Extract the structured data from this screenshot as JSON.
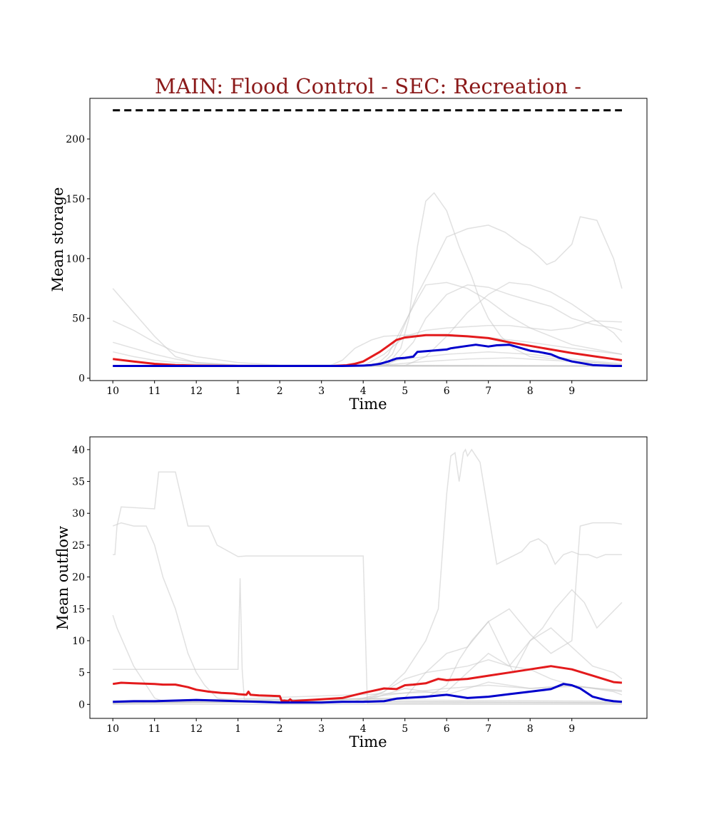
{
  "figure": {
    "title": "MAIN: Flood Control - SEC: Recreation -",
    "title_color": "#8b1a1a"
  },
  "chart_data": [
    {
      "type": "line",
      "xlabel": "Time",
      "ylabel": "Mean storage",
      "x_ticks": [
        "10",
        "11",
        "12",
        "1",
        "2",
        "3",
        "4",
        "5",
        "6",
        "7",
        "8",
        "9"
      ],
      "xlim": [
        -0.55,
        12.8
      ],
      "ylim": [
        -2,
        234
      ],
      "y_ticks": [
        0,
        50,
        100,
        150,
        200
      ],
      "capacity_line": {
        "y": 224,
        "x": [
          0,
          12.2
        ],
        "style": "dashed",
        "color": "#000000"
      },
      "series": [
        {
          "color": "#e31a1c",
          "x": [
            0,
            0.5,
            1,
            1.5,
            2,
            3,
            4,
            5,
            5.3,
            5.6,
            5.8,
            6,
            6.2,
            6.4,
            6.6,
            6.8,
            7,
            7.5,
            8,
            8.5,
            9,
            9.5,
            10,
            10.5,
            11,
            11.5,
            12,
            12.2
          ],
          "y": [
            16,
            14,
            12,
            11,
            10.5,
            10.3,
            10.2,
            10.2,
            10.3,
            10.8,
            12,
            14,
            18,
            22,
            27,
            32,
            34,
            36,
            36,
            35,
            33.5,
            30,
            27,
            24,
            21,
            18.5,
            16,
            15
          ]
        },
        {
          "color": "#0000cc",
          "x": [
            0,
            1,
            2,
            3,
            4,
            5,
            5.5,
            6,
            6.2,
            6.4,
            6.6,
            6.8,
            7,
            7.2,
            7.3,
            8,
            8.1,
            8.5,
            8.7,
            9,
            9.2,
            9.5,
            10,
            10.2,
            10.5,
            10.7,
            11,
            11.5,
            12,
            12.2
          ],
          "y": [
            10.2,
            10.2,
            10.2,
            10.2,
            10.2,
            10.2,
            10.2,
            10.5,
            11,
            12,
            14,
            16.5,
            17,
            18,
            22,
            24,
            25,
            27,
            28,
            26.5,
            27.5,
            28,
            23,
            22,
            20,
            17,
            14,
            11,
            10.2,
            10.2
          ]
        }
      ],
      "background_series": [
        {
          "x": [
            0,
            0.5,
            1,
            1.5,
            2,
            3,
            4,
            5,
            6,
            12.2
          ],
          "y": [
            75,
            55,
            35,
            18,
            13,
            11,
            10.5,
            10.3,
            10.2,
            10.2
          ]
        },
        {
          "x": [
            0,
            0.5,
            1,
            1.5,
            2,
            3,
            4,
            12.2
          ],
          "y": [
            48,
            40,
            30,
            22,
            18,
            13,
            11,
            10.3
          ]
        },
        {
          "x": [
            0,
            0.5,
            1,
            1.5,
            2,
            3,
            12.2
          ],
          "y": [
            30,
            25,
            20,
            16,
            13,
            11,
            10.3
          ]
        },
        {
          "x": [
            0,
            0.5,
            1,
            1.5,
            2,
            3,
            12.2
          ],
          "y": [
            22,
            18,
            15,
            13,
            12,
            10.5,
            10.2
          ]
        },
        {
          "x": [
            0,
            6.3,
            6.6,
            6.9,
            7.1,
            7.3,
            7.5,
            7.7,
            8,
            8.3,
            8.6,
            8.8,
            9,
            9.3,
            9.6,
            10,
            12.2
          ],
          "y": [
            10,
            10.2,
            12,
            25,
            50,
            110,
            148,
            155,
            140,
            110,
            85,
            65,
            50,
            35,
            25,
            18,
            11
          ]
        },
        {
          "x": [
            0,
            6.4,
            6.7,
            7,
            7.3,
            7.6,
            8,
            8.5,
            9,
            9.4,
            9.8,
            10,
            10.2,
            10.4,
            10.6,
            10.8,
            11,
            11.2,
            11.6,
            12,
            12.2
          ],
          "y": [
            10,
            10.2,
            20,
            45,
            70,
            90,
            118,
            125,
            128,
            122,
            112,
            108,
            102,
            95,
            98,
            105,
            112,
            135,
            132,
            100,
            75
          ]
        },
        {
          "x": [
            0,
            6.3,
            6.6,
            6.9,
            7.2,
            7.5,
            8,
            8.5,
            9,
            9.5,
            10,
            10.5,
            11,
            12.2
          ],
          "y": [
            10,
            10.5,
            20,
            40,
            60,
            78,
            80,
            75,
            65,
            52,
            42,
            35,
            28,
            20
          ]
        },
        {
          "x": [
            0,
            6.5,
            6.8,
            7.2,
            7.5,
            8,
            8.5,
            9,
            9.5,
            10,
            10.5,
            11,
            11.5,
            12,
            12.2
          ],
          "y": [
            10,
            10.2,
            15,
            30,
            50,
            70,
            78,
            76,
            70,
            65,
            60,
            50,
            45,
            42,
            40
          ]
        },
        {
          "x": [
            0,
            7,
            7.5,
            8,
            8.5,
            9,
            9.5,
            10,
            10.5,
            11,
            11.5,
            12,
            12.2
          ],
          "y": [
            10,
            10.5,
            18,
            35,
            55,
            70,
            80,
            78,
            72,
            62,
            50,
            38,
            30
          ]
        },
        {
          "x": [
            0,
            6,
            6.5,
            7,
            7.5,
            8,
            9,
            9.5,
            10,
            10.5,
            11,
            11.5,
            12.2
          ],
          "y": [
            10,
            10.3,
            20,
            35,
            40,
            42,
            44,
            44,
            42,
            40,
            42,
            48,
            47
          ]
        },
        {
          "x": [
            0,
            5.2,
            5.5,
            5.8,
            6.2,
            6.5,
            7,
            7.5,
            8,
            9,
            10,
            11,
            12.2
          ],
          "y": [
            10,
            10.5,
            15,
            25,
            32,
            35,
            36,
            36,
            35,
            34,
            30,
            25,
            20
          ]
        },
        {
          "x": [
            0,
            6,
            7,
            8,
            9,
            10,
            11,
            12.2
          ],
          "y": [
            10,
            10.5,
            16,
            20,
            22,
            20,
            16,
            12
          ]
        },
        {
          "x": [
            0,
            6.5,
            7.5,
            8.5,
            9.5,
            10.5,
            11.5,
            12.2
          ],
          "y": [
            10,
            11,
            14,
            16,
            17,
            15,
            13,
            11
          ]
        },
        {
          "x": [
            0,
            12.2
          ],
          "y": [
            10,
            10
          ]
        }
      ]
    },
    {
      "type": "line",
      "xlabel": "Time",
      "ylabel": "Mean outflow",
      "x_ticks": [
        "10",
        "11",
        "12",
        "1",
        "2",
        "3",
        "4",
        "5",
        "6",
        "7",
        "8",
        "9"
      ],
      "xlim": [
        -0.55,
        12.8
      ],
      "ylim": [
        -2.2,
        42
      ],
      "y_ticks": [
        0,
        5,
        10,
        15,
        20,
        25,
        30,
        35,
        40
      ],
      "series": [
        {
          "color": "#e31a1c",
          "x": [
            0,
            0.2,
            0.5,
            1,
            1.2,
            1.5,
            1.8,
            2,
            2.3,
            2.6,
            2.9,
            3,
            3.2,
            3.25,
            3.3,
            3.5,
            4,
            4.05,
            4.1,
            4.2,
            4.25,
            4.3,
            4.5,
            5,
            5.5,
            6,
            6.5,
            6.8,
            7,
            7.2,
            7.5,
            7.8,
            8,
            8.5,
            9,
            9.5,
            10,
            10.5,
            11,
            11.5,
            12,
            12.2
          ],
          "y": [
            3.2,
            3.4,
            3.3,
            3.2,
            3.1,
            3.1,
            2.7,
            2.3,
            2,
            1.8,
            1.7,
            1.6,
            1.5,
            2,
            1.5,
            1.4,
            1.3,
            0.5,
            0.6,
            0.5,
            0.8,
            0.5,
            0.6,
            0.8,
            1.0,
            1.8,
            2.5,
            2.4,
            3,
            3.1,
            3.3,
            4.0,
            3.8,
            4.0,
            4.5,
            5,
            5.5,
            6,
            5.5,
            4.5,
            3.5,
            3.4
          ]
        },
        {
          "color": "#0000cc",
          "x": [
            0,
            0.5,
            1,
            1.5,
            2,
            2.5,
            3,
            3.5,
            4,
            4.5,
            5,
            5.5,
            6,
            6.5,
            6.8,
            7,
            7.5,
            8,
            8.5,
            9,
            9.5,
            10,
            10.5,
            10.8,
            11,
            11.2,
            11.5,
            11.8,
            12,
            12.2
          ],
          "y": [
            0.4,
            0.5,
            0.5,
            0.6,
            0.7,
            0.6,
            0.5,
            0.4,
            0.3,
            0.3,
            0.3,
            0.4,
            0.4,
            0.5,
            0.9,
            1.0,
            1.2,
            1.5,
            1.0,
            1.2,
            1.6,
            2.0,
            2.4,
            3.2,
            3.0,
            2.5,
            1.2,
            0.7,
            0.5,
            0.4
          ]
        }
      ],
      "background_series": [
        {
          "x": [
            0,
            0.05,
            0.1,
            0.2,
            1,
            1.1,
            1.3,
            1.5,
            1.8,
            2,
            2.3,
            2.5,
            3,
            3.2,
            4,
            4.2,
            6,
            6.1,
            12.2
          ],
          "y": [
            23.5,
            23.5,
            28,
            31,
            30.7,
            36.5,
            36.5,
            36.5,
            28,
            28,
            28,
            25,
            23.2,
            23.3,
            23.3,
            23.3,
            23.3,
            0.2,
            0.1
          ]
        },
        {
          "x": [
            0,
            0.2,
            0.5,
            0.8,
            1,
            1.2,
            1.5,
            1.8,
            2,
            2.2,
            2.5,
            3,
            12.2
          ],
          "y": [
            28,
            28.5,
            28,
            28,
            25,
            20,
            15,
            8,
            5,
            3,
            1,
            0.5,
            0.3
          ]
        },
        {
          "x": [
            0,
            0.1,
            0.3,
            0.5,
            0.8,
            1,
            1.2,
            12.2
          ],
          "y": [
            14,
            12,
            9,
            6,
            3,
            1,
            0.5,
            0.3
          ]
        },
        {
          "x": [
            0,
            3,
            3.05,
            3.1,
            3.15,
            12.2
          ],
          "y": [
            5.5,
            5.5,
            19.8,
            5.5,
            0.8,
            0.5
          ]
        },
        {
          "x": [
            0,
            5.7,
            6.5,
            7,
            7.5,
            7.8,
            8,
            8.1,
            8.2,
            8.3,
            8.4,
            8.45,
            8.5,
            8.6,
            8.7,
            8.8,
            9,
            9.2,
            9.5,
            9.8,
            10,
            10.2,
            10.4,
            10.6,
            10.8,
            11,
            11.2,
            11.4,
            11.6,
            11.8,
            12.2
          ],
          "y": [
            0.3,
            0.3,
            2,
            5,
            10,
            15,
            33,
            39,
            39.5,
            35,
            39.5,
            40,
            39,
            40,
            39,
            38,
            30,
            22,
            23,
            24,
            25.5,
            26,
            25,
            22,
            23.5,
            24,
            23.5,
            23.5,
            23,
            23.5,
            23.5
          ]
        },
        {
          "x": [
            0,
            7.5,
            8,
            8.3,
            8.6,
            9,
            9.3,
            9.6,
            10,
            10.3,
            10.6,
            11,
            11.3,
            11.6,
            12.2
          ],
          "y": [
            0.3,
            1,
            3,
            7,
            10,
            13,
            9,
            5,
            10,
            12,
            15,
            18,
            16,
            12,
            16
          ]
        },
        {
          "x": [
            0,
            7,
            7.5,
            8,
            8.5,
            9,
            9.5,
            10,
            10.5,
            11,
            11.2,
            11.5,
            12,
            12.2
          ],
          "y": [
            0.3,
            1,
            5,
            8,
            9,
            13,
            15,
            11,
            8,
            10,
            28,
            28.5,
            28.5,
            28.3
          ]
        },
        {
          "x": [
            0,
            8,
            8.5,
            9,
            9.5,
            10,
            10.5,
            11,
            11.5,
            12,
            12.2
          ],
          "y": [
            0.2,
            2,
            5,
            8,
            6,
            10,
            12,
            9,
            6,
            5,
            4
          ]
        },
        {
          "x": [
            0,
            6,
            6.5,
            7,
            7.5,
            8,
            8.5,
            9,
            9.5,
            10,
            10.5,
            11,
            11.5,
            12,
            12.2
          ],
          "y": [
            0.2,
            0.5,
            2,
            4,
            5,
            5.5,
            6,
            7,
            6,
            5.5,
            4,
            3,
            2.5,
            2,
            1.5
          ]
        },
        {
          "x": [
            0,
            6,
            7,
            8,
            9,
            10,
            11,
            12.2
          ],
          "y": [
            0.2,
            0.5,
            2.5,
            1.5,
            3.5,
            2.5,
            3,
            2
          ]
        },
        {
          "x": [
            0,
            5,
            6,
            7,
            8,
            9,
            10,
            11,
            12.2
          ],
          "y": [
            0.2,
            0.4,
            1,
            1.8,
            2.5,
            3,
            2.5,
            2.8,
            2.2
          ]
        },
        {
          "x": [
            0,
            12.2
          ],
          "y": [
            0,
            0
          ]
        }
      ]
    }
  ]
}
